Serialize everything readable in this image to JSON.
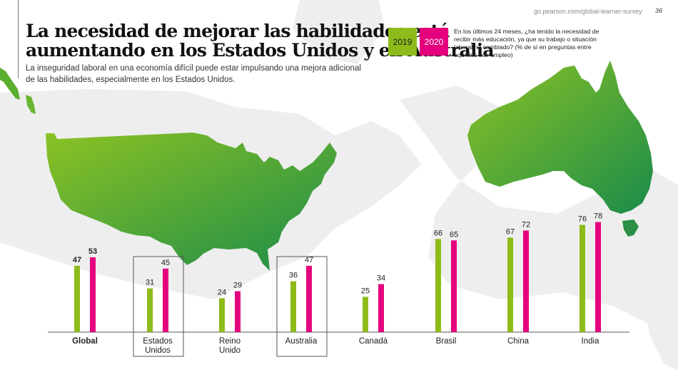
{
  "header": {
    "title_line1": "La necesidad de mejorar las habilidades está",
    "title_line2": "aumentando en los Estados Unidos y en Australia",
    "subtitle_line1": "La inseguridad laboral en una economía difícil puede estar impulsando una mejora adicional",
    "subtitle_line2": "de las habilidades, especialmente en los Estados Unidos.",
    "source": "go.pearson.com/global-learner-survey",
    "page_number": "36"
  },
  "legend": {
    "items": [
      {
        "label": "2019",
        "color": "#8dbb1a"
      },
      {
        "label": "2020",
        "color": "#e5007e"
      }
    ],
    "question": "En los últimos 24 meses, ¿ha tenido la necesidad de recibir más educación, ya que su trabajo o situación laboral ha cambiado? (% de sí en preguntas entre aquellos con empleo)"
  },
  "colors": {
    "map_gradient_start": "#8cc224",
    "map_gradient_end": "#1a8c4a",
    "background_land": "#eeeeee",
    "highlight_box": "#555555"
  },
  "chart_data": {
    "type": "bar",
    "title": "La necesidad de mejorar las habilidades está aumentando en los Estados Unidos y en Australia",
    "xlabel": "",
    "ylabel": "% de sí",
    "ylim": [
      0,
      100
    ],
    "grid": false,
    "legend_position": "top-right",
    "categories": [
      "Global",
      "Estados Unidos",
      "Reino Unido",
      "Australia",
      "Canadá",
      "Brasil",
      "China",
      "India"
    ],
    "category_lines": [
      [
        "Global"
      ],
      [
        "Estados",
        "Unidos"
      ],
      [
        "Reino",
        "Unido"
      ],
      [
        "Australia"
      ],
      [
        "Canadá"
      ],
      [
        "Brasil"
      ],
      [
        "China"
      ],
      [
        "India"
      ]
    ],
    "highlighted": [
      "Estados Unidos",
      "Australia"
    ],
    "bold_categories": [
      "Global"
    ],
    "series": [
      {
        "name": "2019",
        "color": "#8dbb1a",
        "values": [
          47,
          31,
          24,
          36,
          25,
          66,
          67,
          76
        ]
      },
      {
        "name": "2020",
        "color": "#e5007e",
        "values": [
          53,
          45,
          29,
          47,
          34,
          65,
          72,
          78
        ]
      }
    ]
  }
}
